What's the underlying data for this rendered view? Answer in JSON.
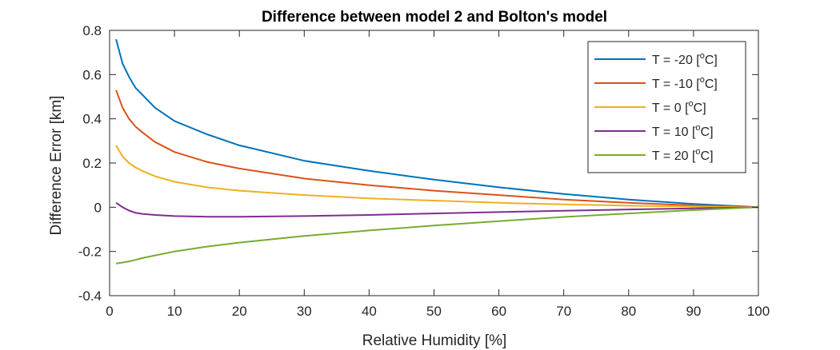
{
  "chart_data": {
    "type": "line",
    "title": "Difference between model 2 and Bolton's model",
    "xlabel": "Relative Humidity [%]",
    "ylabel": "Difference Error [km]",
    "xlim": [
      0,
      100
    ],
    "ylim": [
      -0.4,
      0.8
    ],
    "xticks": [
      "0",
      "10",
      "20",
      "30",
      "40",
      "50",
      "60",
      "70",
      "80",
      "90",
      "100"
    ],
    "yticks": [
      "-0.4",
      "-0.2",
      "0",
      "0.2",
      "0.4",
      "0.6",
      "0.8"
    ],
    "grid": false,
    "legend_position": "top-right",
    "x": [
      1,
      2,
      3,
      4,
      5,
      7,
      10,
      15,
      20,
      30,
      40,
      50,
      60,
      70,
      80,
      90,
      100
    ],
    "series": [
      {
        "name": "T = -20 [",
        "sup": "o",
        "name_suffix": "C]",
        "color": "#0072BD",
        "values": [
          0.76,
          0.65,
          0.59,
          0.54,
          0.51,
          0.45,
          0.39,
          0.33,
          0.28,
          0.21,
          0.165,
          0.125,
          0.09,
          0.06,
          0.035,
          0.015,
          0.0
        ]
      },
      {
        "name": "T = -10 [",
        "sup": "o",
        "name_suffix": "C]",
        "color": "#D95319",
        "values": [
          0.53,
          0.45,
          0.4,
          0.365,
          0.34,
          0.295,
          0.25,
          0.205,
          0.175,
          0.13,
          0.1,
          0.075,
          0.055,
          0.035,
          0.02,
          0.008,
          0.0
        ]
      },
      {
        "name": "T = 0 [",
        "sup": "o",
        "name_suffix": "C]",
        "color": "#EDB120",
        "values": [
          0.28,
          0.23,
          0.2,
          0.18,
          0.165,
          0.14,
          0.115,
          0.09,
          0.075,
          0.055,
          0.04,
          0.03,
          0.02,
          0.013,
          0.007,
          0.003,
          0.0
        ]
      },
      {
        "name": "T = 10 [",
        "sup": "o",
        "name_suffix": "C]",
        "color": "#7E2F8E",
        "values": [
          0.02,
          0.0,
          -0.015,
          -0.025,
          -0.03,
          -0.035,
          -0.04,
          -0.043,
          -0.043,
          -0.04,
          -0.035,
          -0.028,
          -0.022,
          -0.016,
          -0.01,
          -0.005,
          0.0
        ]
      },
      {
        "name": "T = 20 [",
        "sup": "o",
        "name_suffix": "C]",
        "color": "#77AC30",
        "values": [
          -0.255,
          -0.25,
          -0.245,
          -0.238,
          -0.23,
          -0.218,
          -0.2,
          -0.178,
          -0.16,
          -0.13,
          -0.105,
          -0.083,
          -0.063,
          -0.044,
          -0.028,
          -0.013,
          0.0
        ]
      }
    ]
  }
}
